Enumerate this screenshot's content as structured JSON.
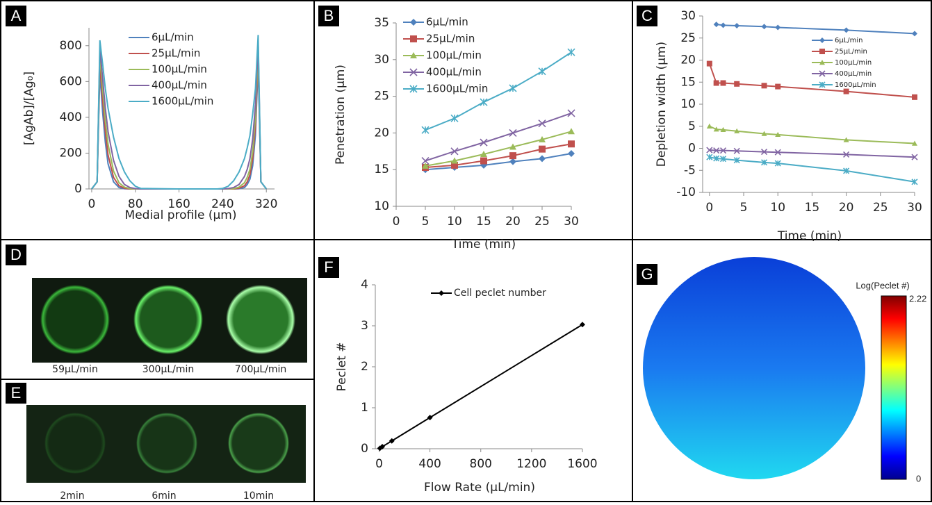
{
  "chart_data": [
    {
      "panel": "A",
      "type": "line",
      "xlabel": "Medial profile (µm)",
      "ylabel": "[AgAb]/[Ag₀]",
      "x": [
        0,
        10,
        15,
        20,
        25,
        30,
        40,
        50,
        60,
        70,
        80,
        90,
        160,
        230,
        240,
        250,
        260,
        270,
        280,
        285,
        290,
        295,
        300,
        305,
        310,
        320
      ],
      "series": [
        {
          "name": "6µL/min",
          "color": "#4f81bd",
          "values": [
            0,
            40,
            650,
            430,
            260,
            140,
            40,
            8,
            1,
            0,
            0,
            0,
            0,
            0,
            0,
            0,
            0,
            1,
            8,
            25,
            55,
            130,
            300,
            700,
            40,
            0
          ]
        },
        {
          "name": "25µL/min",
          "color": "#c0504d",
          "values": [
            0,
            40,
            700,
            500,
            320,
            190,
            65,
            18,
            4,
            0,
            0,
            0,
            0,
            0,
            0,
            0,
            0,
            4,
            18,
            40,
            80,
            170,
            350,
            740,
            40,
            0
          ]
        },
        {
          "name": "100µL/min",
          "color": "#9bbb59",
          "values": [
            0,
            40,
            750,
            560,
            380,
            250,
            100,
            35,
            10,
            2,
            0,
            0,
            0,
            0,
            0,
            0,
            2,
            10,
            35,
            65,
            110,
            210,
            400,
            780,
            40,
            0
          ]
        },
        {
          "name": "400µL/min",
          "color": "#8064a2",
          "values": [
            0,
            40,
            790,
            620,
            450,
            320,
            160,
            70,
            25,
            8,
            2,
            0,
            0,
            0,
            0,
            2,
            8,
            25,
            70,
            110,
            170,
            280,
            470,
            820,
            40,
            0
          ]
        },
        {
          "name": "1600µL/min",
          "color": "#4bacc6",
          "values": [
            0,
            40,
            830,
            700,
            560,
            450,
            290,
            170,
            95,
            45,
            15,
            3,
            0,
            0,
            3,
            15,
            45,
            95,
            170,
            230,
            300,
            420,
            560,
            860,
            40,
            0
          ]
        }
      ],
      "xlim": [
        -5,
        335
      ],
      "ylim": [
        0,
        900
      ],
      "xticks": [
        0,
        80,
        160,
        240,
        320
      ],
      "yticks": [
        0,
        200,
        400,
        600,
        800
      ],
      "legend": "upper center"
    },
    {
      "panel": "B",
      "type": "line",
      "xlabel": "Time (min)",
      "ylabel": "Penetration (µm)",
      "x": [
        5,
        10,
        15,
        20,
        25,
        30
      ],
      "series": [
        {
          "name": "6µL/min",
          "color": "#4f81bd",
          "marker": "diamond",
          "values": [
            15.0,
            15.3,
            15.6,
            16.1,
            16.5,
            17.2
          ]
        },
        {
          "name": "25µL/min",
          "color": "#c0504d",
          "marker": "square",
          "values": [
            15.3,
            15.6,
            16.2,
            16.9,
            17.8,
            18.5
          ]
        },
        {
          "name": "100µL/min",
          "color": "#9bbb59",
          "marker": "triangle",
          "values": [
            15.5,
            16.2,
            17.1,
            18.1,
            19.1,
            20.2
          ]
        },
        {
          "name": "400µL/min",
          "color": "#8064a2",
          "marker": "x",
          "values": [
            16.2,
            17.5,
            18.7,
            20.0,
            21.3,
            22.7
          ]
        },
        {
          "name": "1600µL/min",
          "color": "#4bacc6",
          "marker": "asterisk",
          "values": [
            20.4,
            22.0,
            24.2,
            26.1,
            28.4,
            31.0
          ]
        }
      ],
      "xlim": [
        0,
        30
      ],
      "ylim": [
        10,
        35
      ],
      "xticks": [
        0,
        5,
        10,
        15,
        20,
        25,
        30
      ],
      "yticks": [
        10,
        15,
        20,
        25,
        30,
        35
      ],
      "legend": "upper left"
    },
    {
      "panel": "C",
      "type": "line",
      "xlabel": "Time (min)",
      "ylabel": "Depletion width (µm)",
      "x": [
        0,
        1,
        2,
        4,
        8,
        10,
        20,
        30
      ],
      "series": [
        {
          "name": "6µL/min",
          "color": "#4f81bd",
          "marker": "diamond",
          "values": [
            null,
            28.1,
            27.9,
            27.8,
            27.6,
            27.4,
            26.8,
            26.0
          ]
        },
        {
          "name": "25µL/min",
          "color": "#c0504d",
          "marker": "square",
          "values": [
            19.2,
            14.8,
            14.8,
            14.6,
            14.2,
            14.0,
            12.9,
            11.6
          ]
        },
        {
          "name": "100µL/min",
          "color": "#9bbb59",
          "marker": "triangle",
          "values": [
            5.0,
            4.3,
            4.2,
            3.9,
            3.3,
            3.1,
            1.9,
            1.1
          ]
        },
        {
          "name": "400µL/min",
          "color": "#8064a2",
          "marker": "x",
          "values": [
            -0.4,
            -0.5,
            -0.5,
            -0.6,
            -0.8,
            -0.9,
            -1.4,
            -2.0
          ]
        },
        {
          "name": "1600µL/min",
          "color": "#4bacc6",
          "marker": "asterisk",
          "values": [
            -2.0,
            -2.3,
            -2.4,
            -2.7,
            -3.2,
            -3.4,
            -5.1,
            -7.6
          ]
        }
      ],
      "xlim": [
        -1,
        30
      ],
      "ylim": [
        -10,
        30
      ],
      "xticks": [
        0,
        5,
        10,
        15,
        20,
        25,
        30
      ],
      "yticks": [
        -10,
        -5,
        0,
        5,
        10,
        15,
        20,
        25,
        30
      ],
      "legend": "upper right"
    },
    {
      "panel": "F",
      "type": "line",
      "xlabel": "Flow Rate (µL/min)",
      "ylabel": "Peclet #",
      "x": [
        6,
        25,
        100,
        400,
        1600
      ],
      "series": [
        {
          "name": "Cell peclet number",
          "color": "#000000",
          "marker": "diamond",
          "values": [
            0.01,
            0.05,
            0.19,
            0.76,
            3.03
          ]
        }
      ],
      "xlim": [
        -30,
        1600
      ],
      "ylim": [
        0,
        4
      ],
      "xticks": [
        0,
        400,
        800,
        1200,
        1600
      ],
      "yticks": [
        0,
        1,
        2,
        3,
        4
      ],
      "legend": "upper center"
    }
  ],
  "images": [
    {
      "panel": "D",
      "captions": [
        "59µL/min",
        "300µL/min",
        "700µL/min"
      ]
    },
    {
      "panel": "E",
      "captions": [
        "2min",
        "6min",
        "10min"
      ]
    },
    {
      "panel": "G",
      "colorbar": {
        "title": "Log(Peclet #)",
        "max": 2.22,
        "min": 0
      }
    }
  ]
}
